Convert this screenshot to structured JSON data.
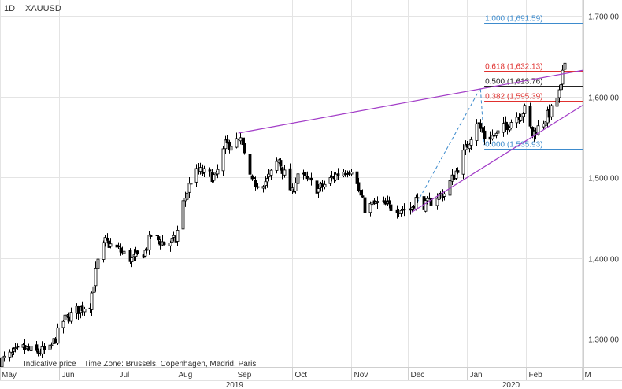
{
  "header": {
    "interval": "1D",
    "symbol": "XAUUSD"
  },
  "notes": {
    "indicative": "Indicative price",
    "timezone": "Time Zone: Brussels, Copenhagen, Madrid, Paris"
  },
  "chart_data": {
    "type": "candlestick",
    "xrange": [
      "2019-05-01",
      "2020-03-02"
    ],
    "ylim": [
      1265,
      1720
    ],
    "y_ticks": [
      {
        "value": 1300,
        "label": "1,300.00"
      },
      {
        "value": 1400,
        "label": "1,400.00"
      },
      {
        "value": 1500,
        "label": "1,500.00"
      },
      {
        "value": 1600,
        "label": "1,600.00"
      },
      {
        "value": 1700,
        "label": "1,700.00"
      }
    ],
    "x_ticks": [
      {
        "date": "2019-05-01",
        "label": "May"
      },
      {
        "date": "2019-06-01",
        "label": "Jun"
      },
      {
        "date": "2019-07-01",
        "label": "Jul"
      },
      {
        "date": "2019-08-01",
        "label": "Aug"
      },
      {
        "date": "2019-09-01",
        "label": "Sep"
      },
      {
        "date": "2019-10-01",
        "label": "Oct"
      },
      {
        "date": "2019-11-01",
        "label": "Nov"
      },
      {
        "date": "2019-12-01",
        "label": "Dec"
      },
      {
        "date": "2020-01-01",
        "label": "Jan"
      },
      {
        "date": "2020-02-01",
        "label": "Feb"
      },
      {
        "date": "2020-03-01",
        "label": "M"
      }
    ],
    "year_labels": [
      {
        "date": "2019-09-01",
        "label": "2019"
      },
      {
        "date": "2020-01-24",
        "label": "2020"
      }
    ],
    "colors": {
      "candle": "#000000",
      "trend": "#a23cc7",
      "fib_blue": "#3d8bcd",
      "fib_red": "#e0302e",
      "fib_black": "#222222",
      "grid": "#e4e4e4"
    },
    "price_anchors": [
      [
        "2019-05-01",
        1272
      ],
      [
        "2019-05-06",
        1279
      ],
      [
        "2019-05-13",
        1288
      ],
      [
        "2019-05-20",
        1283
      ],
      [
        "2019-05-27",
        1286
      ],
      [
        "2019-06-03",
        1322
      ],
      [
        "2019-06-10",
        1335
      ],
      [
        "2019-06-17",
        1344
      ],
      [
        "2019-06-21",
        1395
      ],
      [
        "2019-06-25",
        1420
      ],
      [
        "2019-07-02",
        1410
      ],
      [
        "2019-07-09",
        1398
      ],
      [
        "2019-07-16",
        1408
      ],
      [
        "2019-07-19",
        1428
      ],
      [
        "2019-07-26",
        1418
      ],
      [
        "2019-08-01",
        1422
      ],
      [
        "2019-08-05",
        1468
      ],
      [
        "2019-08-09",
        1497
      ],
      [
        "2019-08-13",
        1508
      ],
      [
        "2019-08-22",
        1500
      ],
      [
        "2019-08-27",
        1540
      ],
      [
        "2019-09-04",
        1545
      ],
      [
        "2019-09-10",
        1492
      ],
      [
        "2019-09-18",
        1496
      ],
      [
        "2019-09-24",
        1522
      ],
      [
        "2019-10-01",
        1480
      ],
      [
        "2019-10-04",
        1505
      ],
      [
        "2019-10-15",
        1485
      ],
      [
        "2019-10-25",
        1505
      ],
      [
        "2019-11-01",
        1512
      ],
      [
        "2019-11-08",
        1462
      ],
      [
        "2019-11-15",
        1468
      ],
      [
        "2019-11-22",
        1463
      ],
      [
        "2019-12-02",
        1460
      ],
      [
        "2019-12-05",
        1473
      ],
      [
        "2019-12-10",
        1465
      ],
      [
        "2019-12-16",
        1477
      ],
      [
        "2019-12-20",
        1480
      ],
      [
        "2019-12-27",
        1512
      ],
      [
        "2020-01-03",
        1552
      ],
      [
        "2020-01-06",
        1570
      ],
      [
        "2020-01-08",
        1560
      ],
      [
        "2020-01-10",
        1550
      ],
      [
        "2020-01-16",
        1552
      ],
      [
        "2020-01-24",
        1570
      ],
      [
        "2020-01-31",
        1584
      ],
      [
        "2020-02-04",
        1553
      ],
      [
        "2020-02-10",
        1570
      ],
      [
        "2020-02-14",
        1583
      ],
      [
        "2020-02-19",
        1610
      ],
      [
        "2020-02-21",
        1643
      ]
    ],
    "trendlines": [
      {
        "from": [
          "2019-09-03",
          1555
        ],
        "to": [
          "2020-03-02",
          1633
        ]
      },
      {
        "from": [
          "2019-12-03",
          1457
        ],
        "to": [
          "2020-03-02",
          1590
        ]
      }
    ],
    "fib_swing": {
      "from": [
        "2019-12-03",
        1457
      ],
      "to": [
        "2020-01-08",
        1611
      ],
      "end": [
        "2020-01-10",
        1540
      ]
    },
    "fibonacci": {
      "start": "2020-01-10",
      "levels": [
        {
          "label": "1.000 (1,691.59)",
          "value": 1691.59,
          "color": "#3d8bcd"
        },
        {
          "label": "0.618 (1,632.13)",
          "value": 1632.13,
          "color": "#e0302e"
        },
        {
          "label": "0.500 (1,613.76)",
          "value": 1613.76,
          "color": "#222222"
        },
        {
          "label": "0.382 (1,595.39)",
          "value": 1595.39,
          "color": "#e0302e"
        },
        {
          "label": "0.000 (1,535.93)",
          "value": 1535.93,
          "color": "#3d8bcd"
        }
      ]
    }
  }
}
